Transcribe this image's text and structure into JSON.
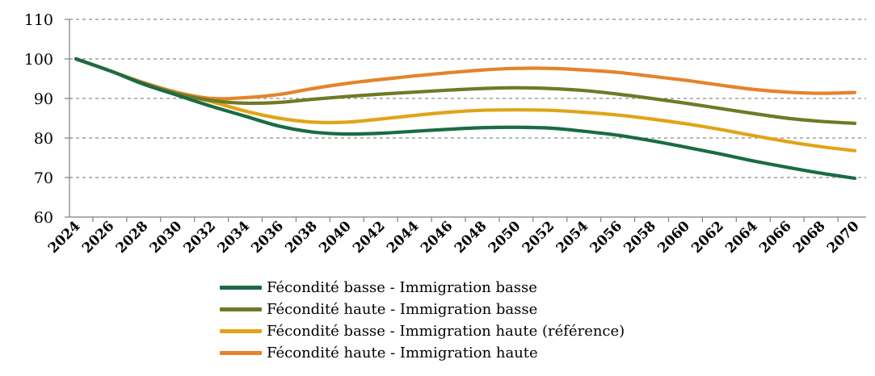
{
  "chart_data": {
    "type": "line",
    "x": [
      2024,
      2026,
      2028,
      2030,
      2032,
      2034,
      2036,
      2038,
      2040,
      2042,
      2044,
      2046,
      2048,
      2050,
      2052,
      2054,
      2056,
      2058,
      2060,
      2062,
      2064,
      2066,
      2068,
      2070
    ],
    "x_tick_labels": [
      "2024",
      "2026",
      "2028",
      "2030",
      "2032",
      "2034",
      "2036",
      "2038",
      "2040",
      "2042",
      "2044",
      "2046",
      "2048",
      "2050",
      "2052",
      "2054",
      "2056",
      "2058",
      "2060",
      "2062",
      "2064",
      "2066",
      "2068",
      "2070"
    ],
    "ylim": [
      60,
      110
    ],
    "y_ticks": [
      60,
      70,
      80,
      90,
      100,
      110
    ],
    "grid": "horizontal dashed",
    "legend_position": "bottom",
    "series": [
      {
        "name": "Fécondité basse - Immigration basse",
        "color": "#1a6b44",
        "values": [
          100,
          97,
          93.6,
          90.8,
          88,
          85.5,
          83,
          81.5,
          81,
          81.2,
          81.7,
          82.2,
          82.6,
          82.7,
          82.5,
          81.7,
          80.7,
          79.3,
          77.7,
          76,
          74.2,
          72.6,
          71.1,
          69.8
        ]
      },
      {
        "name": "Fécondité haute - Immigration basse",
        "color": "#6f7a26",
        "values": [
          100,
          97,
          93.8,
          91.2,
          89.5,
          88.8,
          89,
          89.8,
          90.5,
          91.1,
          91.6,
          92.1,
          92.5,
          92.7,
          92.5,
          92,
          91.1,
          90,
          88.8,
          87.5,
          86.2,
          85,
          84.2,
          83.7
        ]
      },
      {
        "name": "Fécondité basse - Immigration haute (référence)",
        "color": "#e0a417",
        "values": [
          100,
          97,
          93.8,
          91.2,
          89.2,
          86.8,
          85,
          84,
          84,
          84.8,
          85.7,
          86.5,
          87,
          87.1,
          87,
          86.5,
          85.8,
          84.8,
          83.6,
          82.2,
          80.6,
          79.1,
          77.8,
          76.8
        ]
      },
      {
        "name": "Fécondité haute - Immigration haute",
        "color": "#e5832b",
        "values": [
          100,
          97,
          94,
          91.5,
          90,
          90.2,
          91,
          92.5,
          93.8,
          94.8,
          95.7,
          96.5,
          97.2,
          97.6,
          97.6,
          97.2,
          96.6,
          95.6,
          94.6,
          93.4,
          92.3,
          91.6,
          91.3,
          91.5
        ]
      }
    ]
  }
}
